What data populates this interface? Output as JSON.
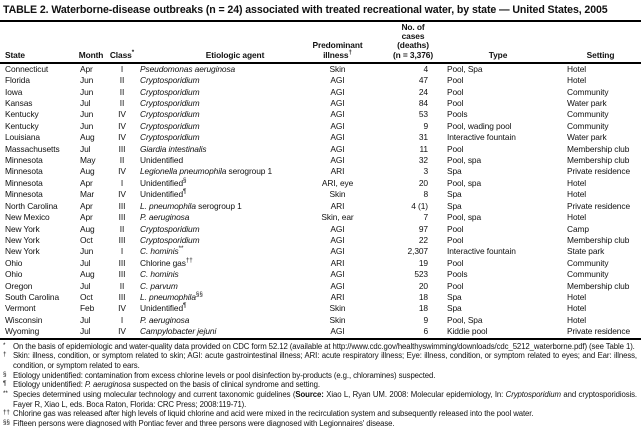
{
  "title": "TABLE 2. Waterborne-disease outbreaks (n = 24) associated with treated recreational water, by state — United States, 2005",
  "table": {
    "header": [
      {
        "key": "state",
        "label": "State"
      },
      {
        "key": "month",
        "label": "Month"
      },
      {
        "key": "class",
        "label": "Class",
        "sup": "*"
      },
      {
        "key": "etiologic-agent",
        "label": "Etiologic agent"
      },
      {
        "key": "predominant-illness",
        "label": "Predominant\nillness",
        "sup": "†"
      },
      {
        "key": "cases",
        "label": "No. of cases\n(deaths)\n(n = 3,376)"
      },
      {
        "key": "type",
        "label": "Type"
      },
      {
        "key": "setting",
        "label": "Setting"
      }
    ],
    "rows": [
      {
        "state": "Connecticut",
        "month": "Apr",
        "class": "I",
        "agent": [
          [
            "Pseudomonas aeruginosa",
            "i"
          ]
        ],
        "agent_sup": "",
        "illness": "Skin",
        "cases": "4",
        "type": "Pool, Spa",
        "setting": "Hotel"
      },
      {
        "state": "Florida",
        "month": "Jun",
        "class": "II",
        "agent": [
          [
            "Cryptosporidium",
            "i"
          ]
        ],
        "agent_sup": "",
        "illness": "AGI",
        "cases": "47",
        "type": "Pool",
        "setting": "Hotel"
      },
      {
        "state": "Iowa",
        "month": "Jun",
        "class": "II",
        "agent": [
          [
            "Cryptosporidium",
            "i"
          ]
        ],
        "agent_sup": "",
        "illness": "AGI",
        "cases": "24",
        "type": "Pool",
        "setting": "Community"
      },
      {
        "state": "Kansas",
        "month": "Jul",
        "class": "II",
        "agent": [
          [
            "Cryptosporidium",
            "i"
          ]
        ],
        "agent_sup": "",
        "illness": "AGI",
        "cases": "84",
        "type": "Pool",
        "setting": "Water park"
      },
      {
        "state": "Kentucky",
        "month": "Jun",
        "class": "IV",
        "agent": [
          [
            "Cryptosporidium",
            "i"
          ]
        ],
        "agent_sup": "",
        "illness": "AGI",
        "cases": "53",
        "type": "Pools",
        "setting": "Community"
      },
      {
        "state": "Kentucky",
        "month": "Jun",
        "class": "IV",
        "agent": [
          [
            "Cryptosporidium",
            "i"
          ]
        ],
        "agent_sup": "",
        "illness": "AGI",
        "cases": "9",
        "type": "Pool, wading pool",
        "setting": "Community"
      },
      {
        "state": "Louisiana",
        "month": "Aug",
        "class": "IV",
        "agent": [
          [
            "Cryptosporidium",
            "i"
          ]
        ],
        "agent_sup": "",
        "illness": "AGI",
        "cases": "31",
        "type": "Interactive fountain",
        "setting": "Water park"
      },
      {
        "state": "Massachusetts",
        "month": "Jul",
        "class": "III",
        "agent": [
          [
            "Giardia intestinalis",
            "i"
          ]
        ],
        "agent_sup": "",
        "illness": "AGI",
        "cases": "11",
        "type": "Pool",
        "setting": "Membership club"
      },
      {
        "state": "Minnesota",
        "month": "May",
        "class": "II",
        "agent": [
          [
            "Unidentified",
            ""
          ]
        ],
        "agent_sup": "",
        "illness": "AGI",
        "cases": "32",
        "type": "Pool, spa",
        "setting": "Membership club"
      },
      {
        "state": "Minnesota",
        "month": "Aug",
        "class": "IV",
        "agent": [
          [
            "Legionella pneumophila",
            "i"
          ],
          [
            " serogroup 1",
            ""
          ]
        ],
        "agent_sup": "",
        "illness": "ARI",
        "cases": "3",
        "type": "Spa",
        "setting": "Private residence"
      },
      {
        "state": "Minnesota",
        "month": "Apr",
        "class": "I",
        "agent": [
          [
            "Unidentified",
            ""
          ]
        ],
        "agent_sup": "§",
        "illness": "ARI, eye",
        "cases": "20",
        "type": "Pool, spa",
        "setting": "Hotel"
      },
      {
        "state": "Minnesota",
        "month": "Mar",
        "class": "IV",
        "agent": [
          [
            "Unidentified",
            ""
          ]
        ],
        "agent_sup": "¶",
        "illness": "Skin",
        "cases": "8",
        "type": "Spa",
        "setting": "Hotel"
      },
      {
        "state": "North Carolina",
        "month": "Apr",
        "class": "III",
        "agent": [
          [
            "L. pneumophila",
            "i"
          ],
          [
            " serogroup 1",
            ""
          ]
        ],
        "agent_sup": "",
        "illness": "ARI",
        "cases": "4 (1)",
        "type": "Spa",
        "setting": "Private residence"
      },
      {
        "state": "New Mexico",
        "month": "Apr",
        "class": "III",
        "agent": [
          [
            "P. aeruginosa",
            "i"
          ]
        ],
        "agent_sup": "",
        "illness": "Skin, ear",
        "cases": "7",
        "type": "Pool, spa",
        "setting": "Hotel"
      },
      {
        "state": "New York",
        "month": "Aug",
        "class": "II",
        "agent": [
          [
            "Cryptosporidium",
            "i"
          ]
        ],
        "agent_sup": "",
        "illness": "AGI",
        "cases": "97",
        "type": "Pool",
        "setting": "Camp"
      },
      {
        "state": "New York",
        "month": "Oct",
        "class": "III",
        "agent": [
          [
            "Cryptosporidium",
            "i"
          ]
        ],
        "agent_sup": "",
        "illness": "AGI",
        "cases": "22",
        "type": "Pool",
        "setting": "Membership club"
      },
      {
        "state": "New York",
        "month": "Jun",
        "class": "I",
        "agent": [
          [
            "C. hominis",
            "i"
          ]
        ],
        "agent_sup": "**",
        "illness": "AGI",
        "cases": "2,307",
        "type": "Interactive fountain",
        "setting": "State park"
      },
      {
        "state": "Ohio",
        "month": "Jul",
        "class": "III",
        "agent": [
          [
            "Chlorine gas",
            ""
          ]
        ],
        "agent_sup": "††",
        "illness": "ARI",
        "cases": "19",
        "type": "Pool",
        "setting": "Community"
      },
      {
        "state": "Ohio",
        "month": "Aug",
        "class": "III",
        "agent": [
          [
            "C. hominis",
            "i"
          ]
        ],
        "agent_sup": "",
        "illness": "AGI",
        "cases": "523",
        "type": "Pools",
        "setting": "Community"
      },
      {
        "state": "Oregon",
        "month": "Jul",
        "class": "II",
        "agent": [
          [
            "C. parvum",
            "i"
          ]
        ],
        "agent_sup": "",
        "illness": "AGI",
        "cases": "20",
        "type": "Pool",
        "setting": "Membership club"
      },
      {
        "state": "South Carolina",
        "month": "Oct",
        "class": "III",
        "agent": [
          [
            "L. pneumophila",
            "i"
          ]
        ],
        "agent_sup": "§§",
        "illness": "ARI",
        "cases": "18",
        "type": "Spa",
        "setting": "Hotel"
      },
      {
        "state": "Vermont",
        "month": "Feb",
        "class": "IV",
        "agent": [
          [
            "Unidentified",
            ""
          ]
        ],
        "agent_sup": "¶",
        "illness": "Skin",
        "cases": "18",
        "type": "Spa",
        "setting": "Hotel"
      },
      {
        "state": "Wisconsin",
        "month": "Jul",
        "class": "I",
        "agent": [
          [
            "P. aeruginosa",
            "i"
          ]
        ],
        "agent_sup": "",
        "illness": "Skin",
        "cases": "9",
        "type": "Pool, Spa",
        "setting": "Hotel"
      },
      {
        "state": "Wyoming",
        "month": "Jul",
        "class": "IV",
        "agent": [
          [
            "Campylobacter jejuni",
            "i"
          ]
        ],
        "agent_sup": "",
        "illness": "AGI",
        "cases": "6",
        "type": "Kiddie pool",
        "setting": "Private residence"
      }
    ]
  },
  "footnotes": [
    {
      "marker": "*",
      "segments": [
        [
          "On the basis of epidemiologic and water-quality data provided on CDC form 52.12 (available at http://www.cdc.gov/healthyswimming/downloads/cdc_5212_waterborne.pdf) (see Table 1).",
          ""
        ]
      ]
    },
    {
      "marker": "†",
      "segments": [
        [
          "Skin: illness, condition, or symptom related to skin; AGI: acute gastrointestinal illness; ARI: acute respiratory illness; Eye: illness, condition, or symptom related to eyes; and Ear: illness, condition, or symptom related to ears.",
          ""
        ]
      ]
    },
    {
      "marker": "§",
      "segments": [
        [
          "Etiology unidentified: contamination from excess chlorine levels or pool disinfection by-products (e.g., chloramines) suspected.",
          ""
        ]
      ]
    },
    {
      "marker": "¶",
      "segments": [
        [
          "Etiology unidentified: ",
          ""
        ],
        [
          "P. aeruginosa",
          "i"
        ],
        [
          " suspected on the basis of clinical syndrome and setting.",
          ""
        ]
      ]
    },
    {
      "marker": "**",
      "segments": [
        [
          "Species determined using molecular technology and current taxonomic guidelines (",
          ""
        ],
        [
          "Source:",
          "b"
        ],
        [
          " Xiao L, Ryan UM. 2008: Molecular epidemiology, In: ",
          ""
        ],
        [
          "Cryptosporidium",
          "i"
        ],
        [
          " and cryptosporidiosis. Fayer R, Xiao L, eds. Boca Raton, Florida: CRC Press; 2008:119-71).",
          ""
        ]
      ]
    },
    {
      "marker": "††",
      "segments": [
        [
          "Chlorine gas was released after high levels of liquid chlorine and acid were mixed in the recirculation system and subsequently released into the pool water.",
          ""
        ]
      ]
    },
    {
      "marker": "§§",
      "segments": [
        [
          "Fifteen persons were diagnosed with Pontiac fever and three persons were diagnosed with Legionnaires' disease.",
          ""
        ]
      ]
    }
  ]
}
